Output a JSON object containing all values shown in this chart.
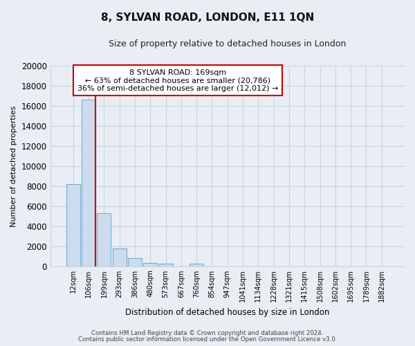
{
  "title": "8, SYLVAN ROAD, LONDON, E11 1QN",
  "subtitle": "Size of property relative to detached houses in London",
  "xlabel": "Distribution of detached houses by size in London",
  "ylabel": "Number of detached properties",
  "bar_labels": [
    "12sqm",
    "106sqm",
    "199sqm",
    "293sqm",
    "386sqm",
    "480sqm",
    "573sqm",
    "667sqm",
    "760sqm",
    "854sqm",
    "947sqm",
    "1041sqm",
    "1134sqm",
    "1228sqm",
    "1321sqm",
    "1415sqm",
    "1508sqm",
    "1602sqm",
    "1695sqm",
    "1789sqm",
    "1882sqm"
  ],
  "bar_values": [
    8200,
    16600,
    5300,
    1750,
    800,
    300,
    280,
    0,
    280,
    0,
    0,
    0,
    0,
    0,
    0,
    0,
    0,
    0,
    0,
    0,
    0
  ],
  "bar_color": "#ccdcee",
  "bar_edge_color": "#7aabce",
  "vline_color": "#cc0000",
  "annotation_text_line1": "8 SYLVAN ROAD: 169sqm",
  "annotation_text_line2": "← 63% of detached houses are smaller (20,786)",
  "annotation_text_line3": "36% of semi-detached houses are larger (12,012) →",
  "ylim": [
    0,
    20000
  ],
  "yticks": [
    0,
    2000,
    4000,
    6000,
    8000,
    10000,
    12000,
    14000,
    16000,
    18000,
    20000
  ],
  "footer1": "Contains HM Land Registry data © Crown copyright and database right 2024.",
  "footer2": "Contains public sector information licensed under the Open Government Licence v3.0.",
  "bg_color": "#e8eef4",
  "plot_bg_color": "#e8eef4",
  "grid_color": "#c8d4e0"
}
